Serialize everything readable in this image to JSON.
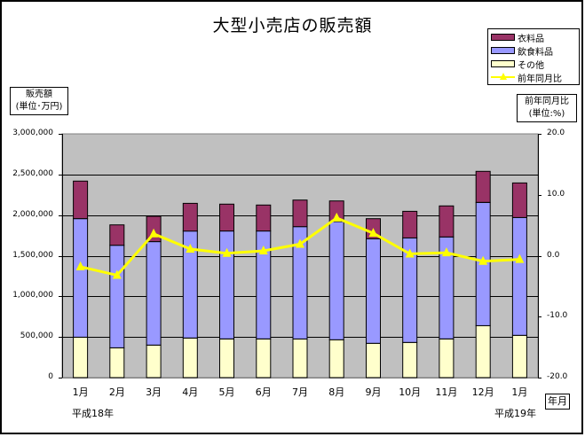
{
  "title": "大型小売店の販売額",
  "legend": {
    "items": [
      {
        "label": "衣料品",
        "type": "bar",
        "color": "#993366"
      },
      {
        "label": "飲食料品",
        "type": "bar",
        "color": "#9999ff"
      },
      {
        "label": "その他",
        "type": "bar",
        "color": "#ffffcc"
      },
      {
        "label": "前年同月比",
        "type": "line",
        "color": "#ffff00"
      }
    ]
  },
  "left_axis_unit": {
    "line1": "販売額",
    "line2": "(単位･万円)"
  },
  "right_axis_unit": {
    "line1": "前年同月比",
    "line2": "(単位:%)"
  },
  "x_axis_unit": "年月",
  "era_labels": {
    "start": "平成18年",
    "end": "平成19年"
  },
  "colors": {
    "plot_background": "#c0c0c0",
    "gridline": "#000000",
    "clothing": "#993366",
    "food": "#9999ff",
    "other": "#ffffcc",
    "yoy_line": "#ffff00"
  },
  "chart_data": {
    "type": "bar",
    "subtype": "stacked bar with line on secondary axis",
    "title": "大型小売店の販売額",
    "xlabel": "年月",
    "ylabel": "販売額(単位･万円)",
    "y2label": "前年同月比(単位:%)",
    "categories": [
      "1月",
      "2月",
      "3月",
      "4月",
      "5月",
      "6月",
      "7月",
      "8月",
      "9月",
      "10月",
      "11月",
      "12月",
      "1月"
    ],
    "ylim": [
      0,
      3000000
    ],
    "y2lim": [
      -20.0,
      20.0
    ],
    "yticks": [
      "0",
      "500,000",
      "1,000,000",
      "1,500,000",
      "2,000,000",
      "2,500,000",
      "3,000,000"
    ],
    "y2ticks": [
      "-20.0",
      "-10.0",
      "0.0",
      "10.0",
      "20.0"
    ],
    "grid": true,
    "legend_position": "top-right",
    "series": [
      {
        "name": "その他",
        "axis": "left",
        "type": "bar",
        "values": [
          498000,
          367000,
          400000,
          487000,
          476000,
          476000,
          476000,
          466000,
          422000,
          433000,
          476000,
          640000,
          520000
        ]
      },
      {
        "name": "飲食料品",
        "axis": "left",
        "type": "bar",
        "values": [
          1458000,
          1262000,
          1273000,
          1317000,
          1328000,
          1328000,
          1382000,
          1454000,
          1287000,
          1287000,
          1255000,
          1516000,
          1451000
        ]
      },
      {
        "name": "衣料品",
        "axis": "left",
        "type": "bar",
        "values": [
          462000,
          251000,
          312000,
          341000,
          331000,
          320000,
          327000,
          254000,
          247000,
          327000,
          382000,
          382000,
          425000
        ]
      },
      {
        "name": "前年同月比",
        "axis": "right",
        "type": "line",
        "values": [
          -1.8,
          -3.2,
          3.6,
          1.1,
          0.4,
          0.8,
          1.9,
          6.2,
          3.7,
          0.3,
          0.5,
          -0.9,
          -0.6
        ]
      }
    ],
    "totals": [
      2418000,
      1880000,
      1985000,
      2145000,
      2135000,
      2124000,
      2185000,
      2174000,
      1956000,
      2047000,
      2113000,
      2538000,
      2396000
    ]
  }
}
